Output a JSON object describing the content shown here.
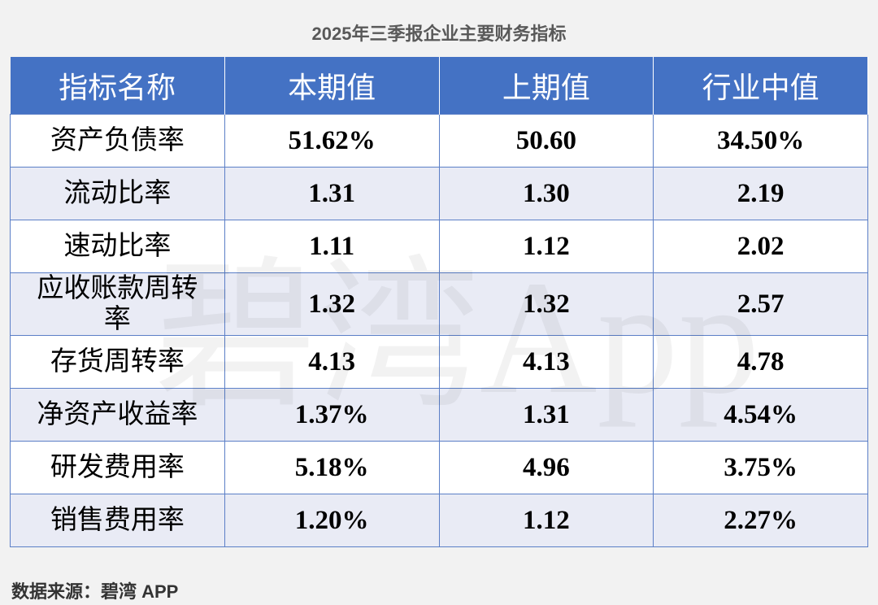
{
  "title": "2025年三季报企业主要财务指标",
  "table": {
    "header": [
      "指标名称",
      "本期值",
      "上期值",
      "行业中值"
    ],
    "rows": [
      [
        "资产负债率",
        "51.62%",
        "50.60",
        "34.50%"
      ],
      [
        "流动比率",
        "1.31",
        "1.30",
        "2.19"
      ],
      [
        "速动比率",
        "1.11",
        "1.12",
        "2.02"
      ],
      [
        "应收账款周转率",
        "1.32",
        "1.32",
        "2.57"
      ],
      [
        "存货周转率",
        "4.13",
        "4.13",
        "4.78"
      ],
      [
        "净资产收益率",
        "1.37%",
        "1.31",
        "4.54%"
      ],
      [
        "研发费用率",
        "5.18%",
        "4.96",
        "3.75%"
      ],
      [
        "销售费用率",
        "1.20%",
        "1.12",
        "2.27%"
      ]
    ]
  },
  "watermark": "碧湾App",
  "source": "数据来源：碧湾 APP"
}
